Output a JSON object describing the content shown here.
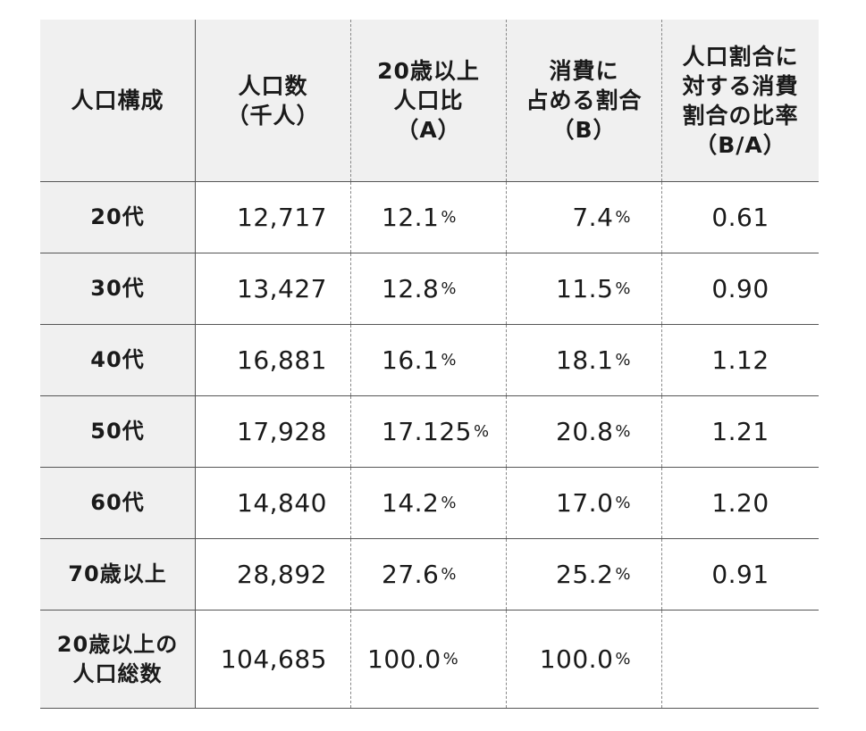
{
  "header": {
    "col0": [
      "人口構成"
    ],
    "col1": [
      "人口数",
      "（千人）"
    ],
    "col2": [
      "20歳以上",
      "人口比",
      "（A）"
    ],
    "col3": [
      "消費に",
      "占める割合",
      "（B）"
    ],
    "col4": [
      "人口割合に",
      "対する消費",
      "割合の比率",
      "（B/A）"
    ]
  },
  "percent_sign": "%",
  "rows": [
    {
      "label": "20代",
      "population": "12,717",
      "ratio_a": "12.1",
      "ratio_b": "7.4",
      "ba": "0.61"
    },
    {
      "label": "30代",
      "population": "13,427",
      "ratio_a": "12.8",
      "ratio_b": "11.5",
      "ba": "0.90"
    },
    {
      "label": "40代",
      "population": "16,881",
      "ratio_a": "16.1",
      "ratio_b": "18.1",
      "ba": "1.12"
    },
    {
      "label": "50代",
      "population": "17,928",
      "ratio_a": "17.125",
      "ratio_b": "20.8",
      "ba": "1.21"
    },
    {
      "label": "60代",
      "population": "14,840",
      "ratio_a": "14.2",
      "ratio_b": "17.0",
      "ba": "1.20"
    },
    {
      "label": "70歳以上",
      "population": "28,892",
      "ratio_a": "27.6",
      "ratio_b": "25.2",
      "ba": "0.91"
    }
  ],
  "total": {
    "label_lines": [
      "20歳以上の",
      "人口総数"
    ],
    "population": "104,685",
    "ratio_a": "100.0",
    "ratio_b": "100.0",
    "ba": ""
  }
}
